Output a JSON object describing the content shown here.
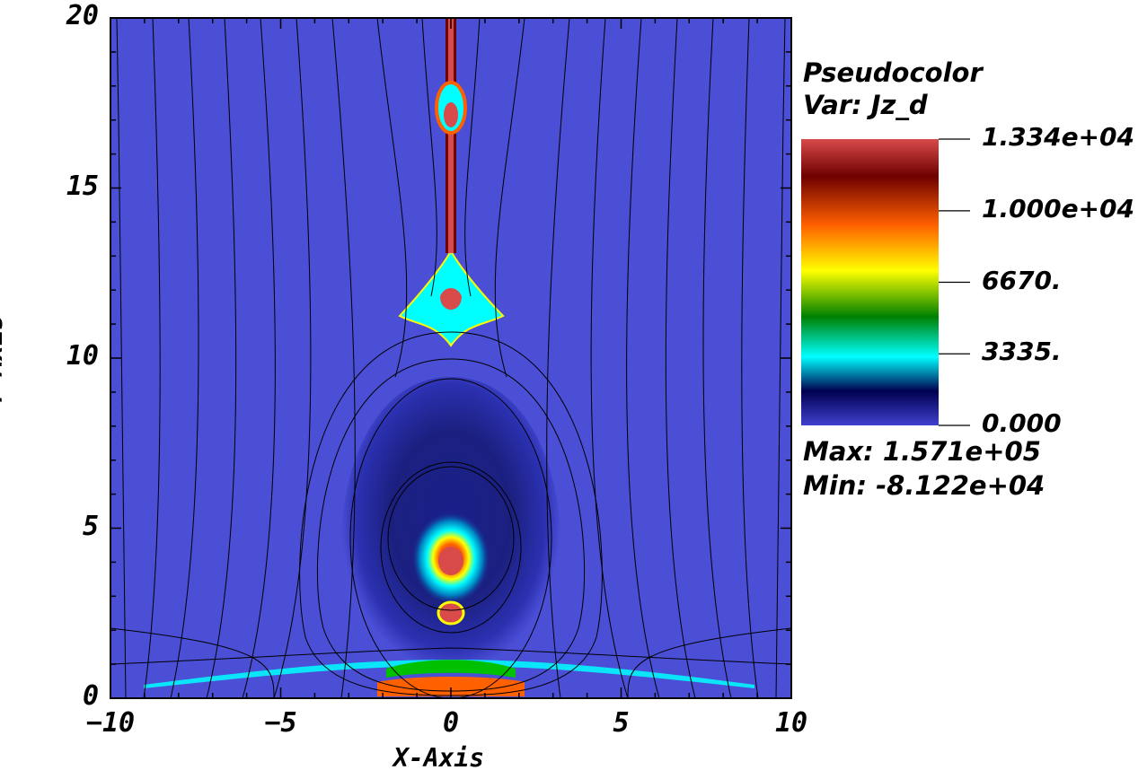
{
  "chart_data": {
    "type": "heatmap",
    "plot_kind": "Pseudocolor",
    "variable_label": "Var: Jz_d",
    "xlabel": "X-Axis",
    "ylabel": "Y-Axis",
    "xlim": [
      -10,
      10
    ],
    "ylim": [
      0,
      20
    ],
    "x_ticks": [
      -10,
      -5,
      0,
      5,
      10
    ],
    "x_tick_labels": [
      "−10",
      "−5",
      "0",
      "5",
      "10"
    ],
    "y_ticks": [
      0,
      5,
      10,
      15,
      20
    ],
    "y_tick_labels": [
      "0",
      "5",
      "10",
      "15",
      "20"
    ],
    "colorbar": {
      "range": [
        0,
        13340
      ],
      "tick_values": [
        13340,
        10000,
        6670,
        3335,
        0
      ],
      "tick_labels": [
        "1.334e+04",
        "1.000e+04",
        "6670.",
        "3335.",
        "0.000"
      ],
      "colormap_stops": [
        "#d94a4a",
        "#6e0000",
        "#ff6000",
        "#ffff00",
        "#008000",
        "#00ffff",
        "#000050",
        "#4040d0"
      ]
    },
    "max_label": "Max:  1.571e+05",
    "min_label": "Min: -8.122e+04",
    "background_color": "#4a4fd6",
    "field_line_color": "#000000"
  }
}
